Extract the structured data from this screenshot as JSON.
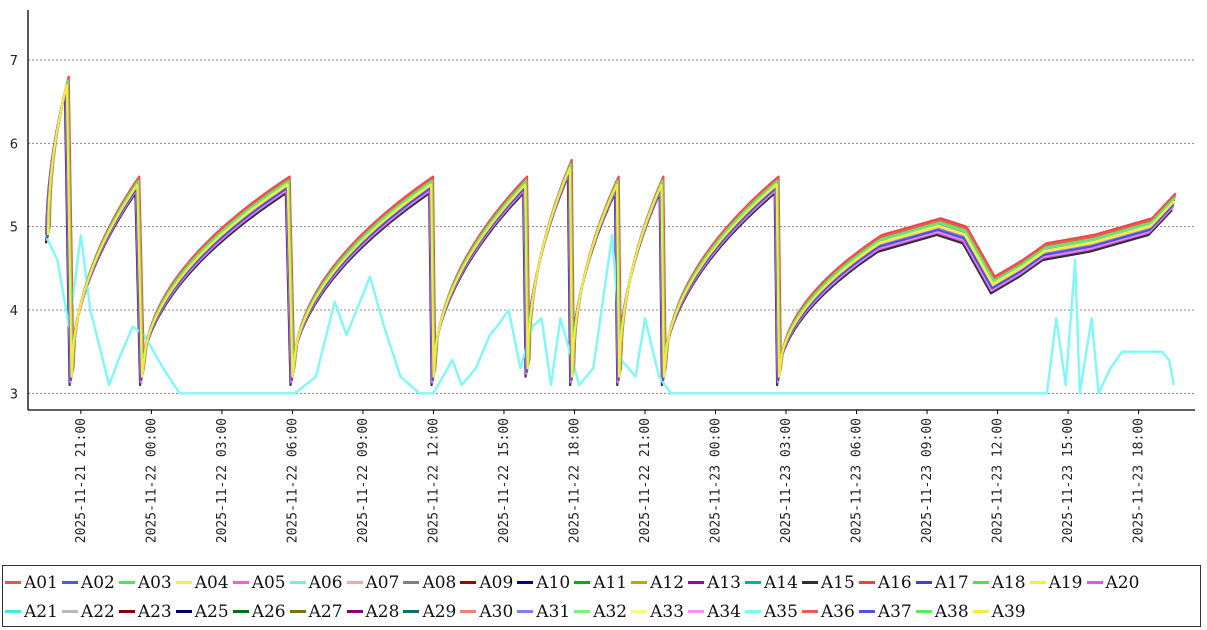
{
  "chart_data": {
    "type": "line",
    "title": "",
    "xlabel": "",
    "ylabel": "",
    "ylim": [
      2.8,
      7.6
    ],
    "xlim_hours": "2025-11-21 18:45 .. 2025-11-23 20:00",
    "grid": "horizontal dashed",
    "legend_placement": "bottom",
    "y_ticks": [
      "3",
      "4",
      "5",
      "6",
      "7"
    ],
    "x_ticks": [
      "2025-11-21  21:00",
      "2025-11-22  00:00",
      "2025-11-22  03:00",
      "2025-11-22  06:00",
      "2025-11-22  09:00",
      "2025-11-22  12:00",
      "2025-11-22  15:00",
      "2025-11-22  18:00",
      "2025-11-22  21:00",
      "2025-11-23  00:00",
      "2025-11-23  03:00",
      "2025-11-23  06:00",
      "2025-11-23  09:00",
      "2025-11-23  12:00",
      "2025-11-23  15:00",
      "2025-11-23  18:00"
    ],
    "x_tick_hours": [
      21,
      24,
      27,
      30,
      33,
      36,
      39,
      42,
      45,
      48,
      51,
      54,
      57,
      60,
      63,
      66
    ],
    "cycle_pattern": {
      "description": "most series: sawtooth cycles",
      "cycles": [
        {
          "start_hour": 19.6,
          "start_value": 4.9,
          "end_hour": 20.4,
          "end_value": 6.7
        },
        {
          "start_hour": 20.6,
          "start_value": 3.2,
          "end_hour": 23.4,
          "end_value": 5.5
        },
        {
          "start_hour": 23.6,
          "start_value": 3.2,
          "end_hour": 29.8,
          "end_value": 5.5
        },
        {
          "start_hour": 30.0,
          "start_value": 3.2,
          "end_hour": 35.9,
          "end_value": 5.5
        },
        {
          "start_hour": 36.0,
          "start_value": 3.2,
          "end_hour": 39.9,
          "end_value": 5.5
        },
        {
          "start_hour": 40.0,
          "start_value": 3.3,
          "end_hour": 41.8,
          "end_value": 5.7
        },
        {
          "start_hour": 41.9,
          "start_value": 3.2,
          "end_hour": 43.8,
          "end_value": 5.5
        },
        {
          "start_hour": 43.9,
          "start_value": 3.2,
          "end_hour": 45.7,
          "end_value": 5.5
        },
        {
          "start_hour": 45.8,
          "start_value": 3.2,
          "end_hour": 50.6,
          "end_value": 5.5
        },
        {
          "start_hour": 50.7,
          "start_value": 3.2,
          "end_hour": 55.0,
          "end_value": 4.8
        }
      ],
      "tail": [
        [
          55.0,
          4.8
        ],
        [
          57.5,
          5.0
        ],
        [
          58.6,
          4.9
        ],
        [
          59.8,
          4.3
        ],
        [
          61.0,
          4.5
        ],
        [
          62.0,
          4.7
        ],
        [
          64.0,
          4.8
        ],
        [
          66.5,
          5.0
        ],
        [
          67.5,
          5.3
        ]
      ]
    },
    "series_a35": {
      "name": "A35",
      "points": [
        [
          19.5,
          4.9
        ],
        [
          20.0,
          4.6
        ],
        [
          20.5,
          3.8
        ],
        [
          21.0,
          4.9
        ],
        [
          21.4,
          4.0
        ],
        [
          22.2,
          3.1
        ],
        [
          22.6,
          3.4
        ],
        [
          23.2,
          3.8
        ],
        [
          23.7,
          3.7
        ],
        [
          24.5,
          3.3
        ],
        [
          25.2,
          3.0
        ],
        [
          30.1,
          3.0
        ],
        [
          31.0,
          3.2
        ],
        [
          31.8,
          4.1
        ],
        [
          32.3,
          3.7
        ],
        [
          33.3,
          4.4
        ],
        [
          33.9,
          3.8
        ],
        [
          34.6,
          3.2
        ],
        [
          35.4,
          3.0
        ],
        [
          36.0,
          3.0
        ],
        [
          36.8,
          3.4
        ],
        [
          37.2,
          3.1
        ],
        [
          37.8,
          3.3
        ],
        [
          38.1,
          3.5
        ],
        [
          38.4,
          3.7
        ],
        [
          38.7,
          3.8
        ],
        [
          39.2,
          4.0
        ],
        [
          39.7,
          3.3
        ],
        [
          40.2,
          3.8
        ],
        [
          40.6,
          3.9
        ],
        [
          41.0,
          3.1
        ],
        [
          41.4,
          3.9
        ],
        [
          42.2,
          3.1
        ],
        [
          42.8,
          3.3
        ],
        [
          43.6,
          4.9
        ],
        [
          44.0,
          3.4
        ],
        [
          44.6,
          3.2
        ],
        [
          45.0,
          3.9
        ],
        [
          45.6,
          3.2
        ],
        [
          46.1,
          3.0
        ],
        [
          60.5,
          3.0
        ],
        [
          62.1,
          3.0
        ],
        [
          62.5,
          3.9
        ],
        [
          62.9,
          3.1
        ],
        [
          63.3,
          4.6
        ],
        [
          63.5,
          3.0
        ],
        [
          64.0,
          3.9
        ],
        [
          64.3,
          3.0
        ],
        [
          64.8,
          3.3
        ],
        [
          65.3,
          3.5
        ],
        [
          66.0,
          3.5
        ],
        [
          67.0,
          3.5
        ],
        [
          67.3,
          3.4
        ],
        [
          67.5,
          3.1
        ]
      ]
    },
    "series": [
      {
        "name": "A01",
        "color": "#f05050",
        "offset": 0.06
      },
      {
        "name": "A02",
        "color": "#4a5ae8",
        "offset": -0.05
      },
      {
        "name": "A03",
        "color": "#55e055",
        "offset": 0.03
      },
      {
        "name": "A04",
        "color": "#f0f04a",
        "offset": -0.02
      },
      {
        "name": "A05",
        "color": "#e860e8",
        "offset": -0.08
      },
      {
        "name": "A06",
        "color": "#6ef0f0",
        "offset": 0.0
      },
      {
        "name": "A07",
        "color": "#f0a8a8",
        "offset": 0.04
      },
      {
        "name": "A08",
        "color": "#808080",
        "offset": -0.03
      },
      {
        "name": "A09",
        "color": "#a00000",
        "offset": -0.04
      },
      {
        "name": "A10",
        "color": "#000090",
        "offset": -0.06
      },
      {
        "name": "A11",
        "color": "#00b000",
        "offset": 0.0
      },
      {
        "name": "A12",
        "color": "#b8a800",
        "offset": -0.01
      },
      {
        "name": "A13",
        "color": "#a000a0",
        "offset": -0.02
      },
      {
        "name": "A14",
        "color": "#00b0b0",
        "offset": -0.04
      },
      {
        "name": "A15",
        "color": "#303030",
        "offset": -0.1
      },
      {
        "name": "A16",
        "color": "#f04040",
        "offset": 0.1
      },
      {
        "name": "A17",
        "color": "#3c3ce0",
        "offset": -0.05
      },
      {
        "name": "A18",
        "color": "#50e050",
        "offset": 0.07
      },
      {
        "name": "A19",
        "color": "#f8f030",
        "offset": 0.02
      },
      {
        "name": "A20",
        "color": "#f050f0",
        "offset": -0.07
      },
      {
        "name": "A21",
        "color": "#40e8e8",
        "offset": 0.01
      },
      {
        "name": "A22",
        "color": "#b8b8b8",
        "offset": -0.02
      },
      {
        "name": "A23",
        "color": "#800000",
        "offset": -0.03
      },
      {
        "name": "A25",
        "color": "#000060",
        "offset": -0.06
      },
      {
        "name": "A26",
        "color": "#007000",
        "offset": -0.01
      },
      {
        "name": "A27",
        "color": "#807000",
        "offset": -0.03
      },
      {
        "name": "A28",
        "color": "#800080",
        "offset": 0.02
      },
      {
        "name": "A29",
        "color": "#007070",
        "offset": -0.04
      },
      {
        "name": "A30",
        "color": "#f08070",
        "offset": 0.05
      },
      {
        "name": "A31",
        "color": "#8080f0",
        "offset": -0.02
      },
      {
        "name": "A32",
        "color": "#80f080",
        "offset": 0.04
      },
      {
        "name": "A33",
        "color": "#f8f890",
        "offset": 0.01
      },
      {
        "name": "A34",
        "color": "#f090f0",
        "offset": -0.06
      },
      {
        "name": "A35",
        "color": "#80f8f8",
        "offset": 0.0
      },
      {
        "name": "A36",
        "color": "#f05858",
        "offset": 0.08
      },
      {
        "name": "A37",
        "color": "#5050e8",
        "offset": -0.04
      },
      {
        "name": "A38",
        "color": "#60e860",
        "offset": 0.05
      },
      {
        "name": "A39",
        "color": "#f8e840",
        "offset": 0.0
      }
    ]
  }
}
